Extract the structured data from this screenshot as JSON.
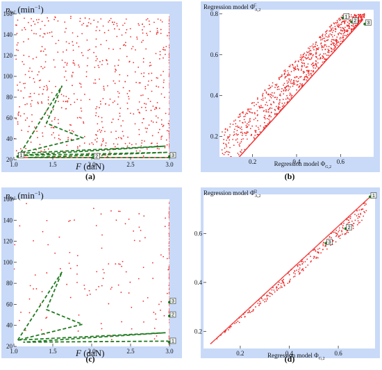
{
  "colors": {
    "panel_bg": "#c9daf8",
    "scatter": "#ee2a2a",
    "path": "#1f7a1f",
    "line": "#e02020"
  },
  "chart_data": [
    {
      "type": "scatter",
      "caption": "(a)",
      "ylabel": {
        "main": "n",
        "sub": "W",
        "unit": " (min",
        "sup": "−1",
        "close": ")"
      },
      "xlabel": {
        "main": "F",
        "unit": " (daN)"
      },
      "xlim": [
        1.0,
        3.0
      ],
      "ylim": [
        20,
        160
      ],
      "x_ticks": [
        "1.0",
        "1.5",
        "2.0",
        "2.5",
        "3.0"
      ],
      "y_ticks": [
        "20",
        "40",
        "60",
        "80",
        "100",
        "120",
        "140",
        "160"
      ],
      "scatter_density": "dense",
      "boundary_points": {
        "x": 3.0,
        "y_from": 22,
        "y_to": 158
      },
      "bottom_line": {
        "y": 22,
        "x_from": 1.05,
        "x_to": 3.0
      },
      "path": [
        [
          1.05,
          22
        ],
        [
          1.62,
          91
        ],
        [
          1.42,
          55
        ],
        [
          1.88,
          41
        ],
        [
          1.05,
          26
        ],
        [
          2.95,
          33
        ],
        [
          1.05,
          24
        ],
        [
          2.98,
          27
        ],
        [
          1.18,
          22
        ],
        [
          3.0,
          22
        ]
      ],
      "markers": [
        {
          "label": "1",
          "x": 1.05,
          "y": 23
        },
        {
          "label": "2",
          "x": 2.02,
          "y": 22
        },
        {
          "label": "3",
          "x": 3.0,
          "y": 23
        }
      ]
    },
    {
      "type": "scatter",
      "caption": "(b)",
      "ylabel": {
        "main": "Regression model Φ",
        "sub": "A,2",
        "sup": "C"
      },
      "xlabel": {
        "main": "Regression model Φ",
        "sub": "G,2"
      },
      "xlim": [
        0.05,
        0.75
      ],
      "ylim": [
        0.1,
        0.82
      ],
      "x_ticks": [
        "0.2",
        "0.4",
        "0.6"
      ],
      "y_ticks": [
        "0.2",
        "0.4",
        "0.6",
        "0.8"
      ],
      "envelope": [
        [
          0.14,
          0.1
        ],
        [
          0.7,
          0.77
        ]
      ],
      "markers": [
        {
          "label": "1",
          "x": 0.61,
          "y": 0.78
        },
        {
          "label": "2",
          "x": 0.65,
          "y": 0.76
        },
        {
          "label": "3",
          "x": 0.71,
          "y": 0.75
        }
      ]
    },
    {
      "type": "scatter",
      "caption": "(c)",
      "ylabel": {
        "main": "n",
        "sub": "W",
        "unit": " (min",
        "sup": "−1",
        "close": ")"
      },
      "xlabel": {
        "main": "F",
        "unit": " (daN)"
      },
      "xlim": [
        1.0,
        3.0
      ],
      "ylim": [
        20,
        160
      ],
      "x_ticks": [
        "1.0",
        "1.5",
        "2.0",
        "2.5",
        "3.0"
      ],
      "y_ticks": [
        "20",
        "40",
        "60",
        "80",
        "100",
        "120",
        "140",
        "160"
      ],
      "scatter_density": "sparse",
      "boundary_points": {
        "x": 3.0,
        "y_from": 22,
        "y_to": 158
      },
      "path": [
        [
          1.05,
          26
        ],
        [
          1.62,
          91
        ],
        [
          1.42,
          55
        ],
        [
          1.88,
          41
        ],
        [
          1.05,
          26
        ],
        [
          2.95,
          33
        ],
        [
          1.12,
          24
        ],
        [
          2.98,
          25
        ],
        [
          3.0,
          22
        ]
      ],
      "markers": [
        {
          "label": "1",
          "x": 3.0,
          "y": 24
        },
        {
          "label": "2",
          "x": 3.0,
          "y": 49
        },
        {
          "label": "3",
          "x": 3.0,
          "y": 62
        }
      ]
    },
    {
      "type": "scatter",
      "caption": "(d)",
      "ylabel": {
        "main": "Regression model Φ",
        "sub": "A,2",
        "sup": "Q"
      },
      "xlabel": {
        "main": "Regression model Φ",
        "sub": "G,2"
      },
      "xlim": [
        0.05,
        0.75
      ],
      "ylim": [
        0.13,
        0.76
      ],
      "x_ticks": [
        "0.2",
        "0.4",
        "0.6"
      ],
      "y_ticks": [
        "0.2",
        "0.4",
        "0.6"
      ],
      "envelope": [
        [
          0.08,
          0.15
        ],
        [
          0.73,
          0.75
        ]
      ],
      "markers": [
        {
          "label": "1",
          "x": 0.73,
          "y": 0.75
        },
        {
          "label": "2",
          "x": 0.63,
          "y": 0.62
        },
        {
          "label": "3",
          "x": 0.55,
          "y": 0.56
        }
      ]
    }
  ]
}
